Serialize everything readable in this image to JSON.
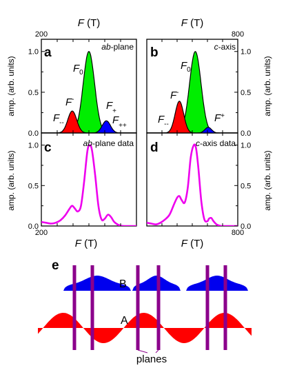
{
  "chart_data": [
    {
      "panel": "a",
      "type": "area",
      "annotation": "ab-plane",
      "annotation_italic": "ab",
      "annotation_rest": "-plane",
      "xlabel": "F (T)",
      "ylabel": "amp. (arb. units)",
      "xlim": [
        200,
        800
      ],
      "ylim": [
        0,
        1.15
      ],
      "x_ticks": [
        "200",
        "800"
      ],
      "y_ticks": [
        "0.0",
        "0.5",
        "1.0"
      ],
      "series": [
        {
          "name": "F0",
          "label_main": "F",
          "label_sub": "0",
          "color": "#00ee00",
          "center": 500,
          "sigma": 36,
          "amplitude": 1.0
        },
        {
          "name": "F-",
          "label_main": "F",
          "label_sub": "-",
          "color": "#ff0000",
          "center": 395,
          "sigma": 28,
          "amplitude": 0.27
        },
        {
          "name": "F+",
          "label_main": "F",
          "label_sub": "+",
          "color": "#0000ff",
          "center": 610,
          "sigma": 26,
          "amplitude": 0.15
        },
        {
          "name": "F--",
          "label_main": "F",
          "label_sub": "--",
          "color": "#ff0000",
          "center": 290,
          "sigma": 20,
          "amplitude": 0.0
        },
        {
          "name": "F++",
          "label_main": "F",
          "label_sub": "++",
          "color": "#0000ff",
          "center": 720,
          "sigma": 20,
          "amplitude": 0.0
        }
      ]
    },
    {
      "panel": "b",
      "type": "area",
      "annotation": "c-axis",
      "annotation_italic": "c",
      "annotation_rest": "-axis",
      "xlabel": "F (T)",
      "ylabel": "amp. (arb. units)",
      "xlim": [
        200,
        800
      ],
      "ylim": [
        0,
        1.15
      ],
      "x_ticks": [
        "800"
      ],
      "y_ticks": [
        "0.0",
        "0.5",
        "1.0"
      ],
      "series": [
        {
          "name": "F0",
          "label_main": "F",
          "label_sub": "0",
          "color": "#00ee00",
          "center": 520,
          "sigma": 38,
          "amplitude": 1.0
        },
        {
          "name": "F-",
          "label_main": "F",
          "label_sub": "-",
          "color": "#ff0000",
          "center": 415,
          "sigma": 28,
          "amplitude": 0.39
        },
        {
          "name": "F+",
          "label_main": "F",
          "label_sub": "+",
          "color": "#0000ff",
          "center": 605,
          "sigma": 22,
          "amplitude": 0.07
        },
        {
          "name": "F--",
          "label_main": "F",
          "label_sub": "--",
          "color": "#ff0000",
          "center": 300,
          "sigma": 20,
          "amplitude": 0.0
        }
      ]
    },
    {
      "panel": "c",
      "type": "line",
      "annotation": "ab-plane data",
      "annotation_italic": "ab",
      "annotation_rest": "-plane data",
      "xlabel": "F (T)",
      "ylabel": "amp. (arb. units)",
      "xlim": [
        200,
        800
      ],
      "ylim": [
        0,
        1.15
      ],
      "x_ticks": [
        "200",
        "800"
      ],
      "y_ticks": [
        "0.0",
        "0.5",
        "1.0"
      ],
      "series": [
        {
          "color": "#ee00ee",
          "x": [
            200,
            230,
            260,
            290,
            320,
            350,
            380,
            395,
            410,
            430,
            450,
            470,
            490,
            505,
            520,
            540,
            560,
            580,
            600,
            620,
            640,
            660,
            690,
            720,
            760,
            800
          ],
          "y": [
            0.05,
            0.04,
            0.03,
            0.04,
            0.07,
            0.13,
            0.22,
            0.25,
            0.22,
            0.18,
            0.25,
            0.55,
            0.92,
            1.0,
            0.93,
            0.62,
            0.25,
            0.08,
            0.09,
            0.14,
            0.11,
            0.05,
            0.01,
            0.0,
            0.0,
            0.0
          ]
        }
      ]
    },
    {
      "panel": "d",
      "type": "line",
      "annotation": "c-axis data",
      "annotation_italic": "c",
      "annotation_rest": "-axis data",
      "xlabel": "F (T)",
      "ylabel": "amp. (arb. units)",
      "xlim": [
        200,
        800
      ],
      "ylim": [
        0,
        1.15
      ],
      "x_ticks": [
        "200",
        "800"
      ],
      "y_ticks": [
        "0.0",
        "0.5",
        "1.0"
      ],
      "series": [
        {
          "color": "#ee00ee",
          "x": [
            200,
            230,
            260,
            290,
            320,
            350,
            380,
            400,
            415,
            430,
            450,
            470,
            490,
            510,
            525,
            540,
            560,
            580,
            600,
            610,
            625,
            640,
            660,
            690,
            720,
            760,
            800
          ],
          "y": [
            0.04,
            0.03,
            0.02,
            0.04,
            0.08,
            0.14,
            0.27,
            0.35,
            0.37,
            0.32,
            0.29,
            0.47,
            0.85,
            1.0,
            0.96,
            0.72,
            0.3,
            0.08,
            0.06,
            0.09,
            0.1,
            0.06,
            0.02,
            0.0,
            0.0,
            0.0,
            0.0
          ]
        }
      ]
    }
  ],
  "figure": {
    "top_axis_label": "F (T)",
    "top_axis_ticks": [
      "200",
      "800"
    ],
    "bottom_axis_label": "F (T)",
    "bottom_axis_ticks": [
      "200",
      "800"
    ],
    "axis_label_italic": "F",
    "axis_label_rest": " (T)"
  },
  "diagram_e": {
    "panel": "e",
    "label_B": "B",
    "label_A": "A",
    "label_planes": "planes",
    "color_B": "#0000ee",
    "color_A": "#ff0000",
    "color_planes": "#8b008b"
  }
}
